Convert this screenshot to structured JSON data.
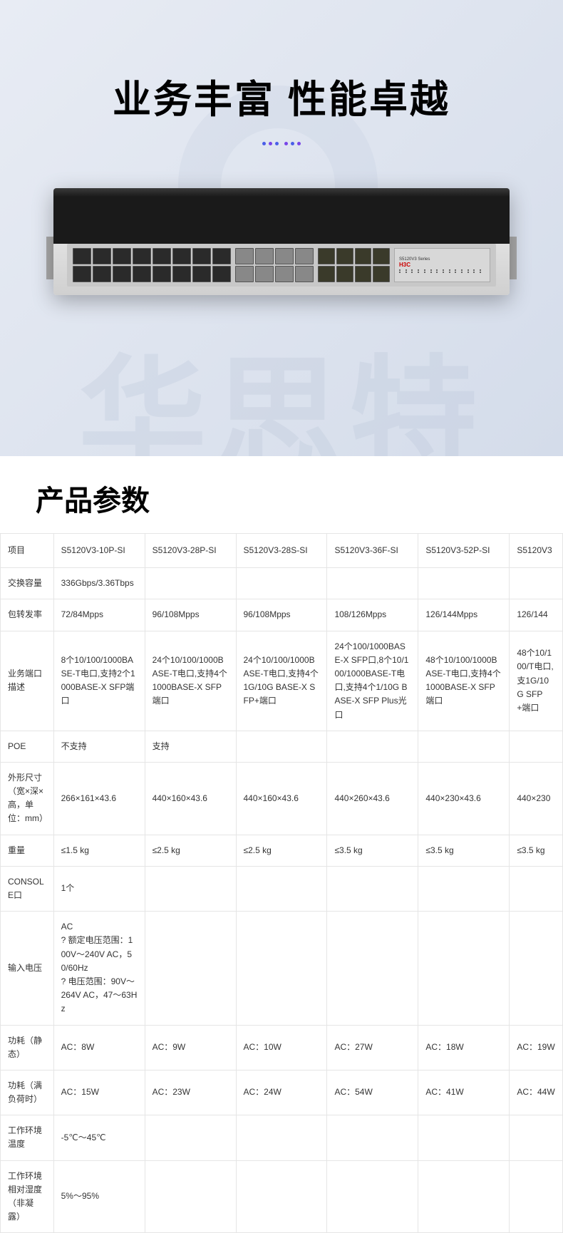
{
  "hero": {
    "title": "业务丰富  性能卓越",
    "watermark": "华思特",
    "dot_colors": [
      "#4a5ee8",
      "#7845e8",
      "#4a5ee8",
      "#7845e8",
      "#4a5ee8",
      "#7845e8"
    ]
  },
  "device": {
    "brand": "H3C",
    "model_series": "S5120V3 Series"
  },
  "specs": {
    "title": "产品参数",
    "columns": [
      "项目",
      "S5120V3-10P-SI",
      "S5120V3-28P-SI",
      "S5120V3-28S-SI",
      "S5120V3-36F-SI",
      "S5120V3-52P-SI",
      "S5120V3"
    ],
    "rows": [
      {
        "label": "交换容量",
        "cells": [
          "336Gbps/3.36Tbps",
          "",
          "",
          "",
          "",
          ""
        ]
      },
      {
        "label": "包转发率",
        "cells": [
          "72/84Mpps",
          "96/108Mpps",
          "96/108Mpps",
          "108/126Mpps",
          "126/144Mpps",
          "126/144"
        ]
      },
      {
        "label": "业务端口描述",
        "cells": [
          "8个10/100/1000BASE-T电口,支持2个1000BASE-X SFP端口",
          "24个10/100/1000BASE-T电口,支持4个1000BASE-X SFP端口",
          "24个10/100/1000BASE-T电口,支持4个1G/10G BASE-X SFP+端口",
          "24个100/1000BASE-X SFP口,8个10/100/1000BASE-T电口,支持4个1/10G BASE-X SFP Plus光口",
          "48个10/100/1000BASE-T电口,支持4个1000BASE-X SFP端口",
          "48个10/100/T电口,支1G/10G SFP+端口"
        ]
      },
      {
        "label": "POE",
        "cells": [
          "不支持",
          "支持",
          "",
          "",
          "",
          ""
        ]
      },
      {
        "label": "外形尺寸（宽×深×高，单位：mm）",
        "cells": [
          "266×161×43.6",
          "440×160×43.6",
          "440×160×43.6",
          "440×260×43.6",
          "440×230×43.6",
          "440×230"
        ]
      },
      {
        "label": "重量",
        "cells": [
          "≤1.5 kg",
          "≤2.5 kg",
          "≤2.5 kg",
          "≤3.5 kg",
          "≤3.5 kg",
          "≤3.5 kg"
        ]
      },
      {
        "label": "CONSOLE口",
        "cells": [
          "1个",
          "",
          "",
          "",
          "",
          ""
        ]
      },
      {
        "label": "输入电压",
        "cells": [
          "AC\n? 额定电压范围：100V～240V AC，50/60Hz\n? 电压范围：90V～264V AC，47～63Hz",
          "",
          "",
          "",
          "",
          ""
        ]
      },
      {
        "label": "功耗（静态）",
        "cells": [
          "AC：8W",
          "AC：9W",
          "AC：10W",
          "AC：27W",
          "AC：18W",
          "AC：19W"
        ]
      },
      {
        "label": "功耗（满负荷时）",
        "cells": [
          "AC：15W",
          "AC：23W",
          "AC：24W",
          "AC：54W",
          "AC：41W",
          "AC：44W"
        ]
      },
      {
        "label": "工作环境温度",
        "cells": [
          "-5℃～45℃",
          "",
          "",
          "",
          "",
          ""
        ]
      },
      {
        "label": "工作环境相对湿度（非凝露）",
        "cells": [
          "5%～95%",
          "",
          "",
          "",
          "",
          ""
        ]
      }
    ]
  },
  "colors": {
    "background_hero": "#e8ecf4",
    "background_specs": "#ffffff",
    "text_primary": "#000000",
    "text_body": "#333333",
    "border": "#e5e5e5"
  }
}
